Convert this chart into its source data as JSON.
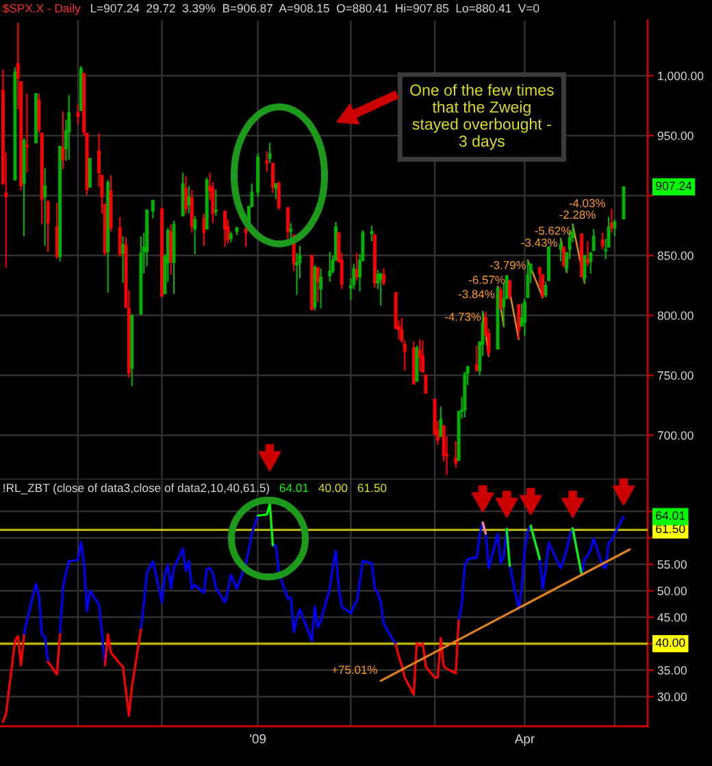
{
  "chart_data": [
    {
      "type": "candlestick",
      "title": "$SPX.X - Daily",
      "subtitle": "L=907.24  29.72  3.39%  B=906.87  A=908.15  O=880.41  Hi=907.85  Lo=880.41  V=0",
      "x": [
        "2008-10-09",
        "2008-10-10",
        "2008-10-13",
        "2008-10-14",
        "2008-10-15",
        "2008-10-16",
        "2008-10-17",
        "2008-10-20",
        "2008-10-21",
        "2008-10-22",
        "2008-10-23",
        "2008-10-24",
        "2008-10-27",
        "2008-10-28",
        "2008-10-29",
        "2008-10-30",
        "2008-10-31",
        "2008-11-03",
        "2008-11-04",
        "2008-11-05",
        "2008-11-06",
        "2008-11-07",
        "2008-11-10",
        "2008-11-11",
        "2008-11-12",
        "2008-11-13",
        "2008-11-14",
        "2008-11-17",
        "2008-11-18",
        "2008-11-19",
        "2008-11-20",
        "2008-11-21",
        "2008-11-24",
        "2008-11-25",
        "2008-11-26",
        "2008-11-28",
        "2008-12-01",
        "2008-12-02",
        "2008-12-03",
        "2008-12-04",
        "2008-12-05",
        "2008-12-08",
        "2008-12-09",
        "2008-12-10",
        "2008-12-11",
        "2008-12-12",
        "2008-12-15",
        "2008-12-16",
        "2008-12-17",
        "2008-12-18",
        "2008-12-19",
        "2008-12-22",
        "2008-12-23",
        "2008-12-24",
        "2008-12-26",
        "2008-12-29",
        "2008-12-30",
        "2008-12-31",
        "2009-01-02",
        "2009-01-05",
        "2009-01-06",
        "2009-01-07",
        "2009-01-08",
        "2009-01-09",
        "2009-01-12",
        "2009-01-13",
        "2009-01-14",
        "2009-01-15",
        "2009-01-16",
        "2009-01-20",
        "2009-01-21",
        "2009-01-22",
        "2009-01-23",
        "2009-01-26",
        "2009-01-27",
        "2009-01-28",
        "2009-01-29",
        "2009-01-30",
        "2009-02-02",
        "2009-02-03",
        "2009-02-04",
        "2009-02-05",
        "2009-02-06",
        "2009-02-09",
        "2009-02-10",
        "2009-02-11",
        "2009-02-12",
        "2009-02-13",
        "2009-02-17",
        "2009-02-18",
        "2009-02-19",
        "2009-02-20",
        "2009-02-23",
        "2009-02-24",
        "2009-02-25",
        "2009-02-26",
        "2009-02-27",
        "2009-03-02",
        "2009-03-03",
        "2009-03-04",
        "2009-03-05",
        "2009-03-06",
        "2009-03-09",
        "2009-03-10",
        "2009-03-11",
        "2009-03-12",
        "2009-03-13",
        "2009-03-16",
        "2009-03-17",
        "2009-03-18",
        "2009-03-19",
        "2009-03-20",
        "2009-03-23",
        "2009-03-24",
        "2009-03-25",
        "2009-03-26",
        "2009-03-27",
        "2009-03-30",
        "2009-03-31",
        "2009-04-01",
        "2009-04-02",
        "2009-04-03",
        "2009-04-06",
        "2009-04-07",
        "2009-04-08",
        "2009-04-09",
        "2009-04-13",
        "2009-04-14",
        "2009-04-15",
        "2009-04-16",
        "2009-04-17",
        "2009-04-20",
        "2009-04-21",
        "2009-04-22",
        "2009-04-23",
        "2009-04-24",
        "2009-04-27",
        "2009-04-28",
        "2009-04-29",
        "2009-04-30",
        "2009-05-01",
        "2009-05-04"
      ],
      "ohlc": [
        [
          988,
          1005,
          909,
          910
        ],
        [
          902,
          936,
          840,
          899
        ],
        [
          913,
          1007,
          913,
          1003
        ],
        [
          1010,
          1044,
          972,
          998
        ],
        [
          995,
          995,
          904,
          908
        ],
        [
          910,
          948,
          866,
          946
        ],
        [
          942,
          985,
          919,
          941
        ],
        [
          944,
          985,
          944,
          985
        ],
        [
          980,
          985,
          952,
          955
        ],
        [
          952,
          952,
          876,
          897
        ],
        [
          899,
          923,
          858,
          908
        ],
        [
          895,
          896,
          853,
          877
        ],
        [
          874,
          894,
          847,
          849
        ],
        [
          849,
          941,
          845,
          941
        ],
        [
          940,
          970,
          922,
          930
        ],
        [
          939,
          963,
          929,
          954
        ],
        [
          953,
          984,
          930,
          969
        ],
        [
          969,
          976,
          959,
          966
        ],
        [
          971,
          1008,
          971,
          1006
        ],
        [
          1002,
          1002,
          950,
          953
        ],
        [
          952,
          952,
          900,
          905
        ],
        [
          907,
          931,
          907,
          931
        ],
        [
          937,
          952,
          907,
          919
        ],
        [
          917,
          917,
          885,
          899
        ],
        [
          893,
          893,
          850,
          852
        ],
        [
          853,
          913,
          819,
          911
        ],
        [
          904,
          917,
          870,
          873
        ],
        [
          873,
          882,
          849,
          851
        ],
        [
          852,
          866,
          827,
          859
        ],
        [
          859,
          865,
          806,
          807
        ],
        [
          806,
          821,
          748,
          752
        ],
        [
          756,
          801,
          741,
          800
        ],
        [
          801,
          866,
          801,
          852
        ],
        [
          853,
          869,
          835,
          857
        ],
        [
          853,
          888,
          841,
          888
        ],
        [
          887,
          896,
          881,
          896
        ],
        [
          889,
          889,
          816,
          816
        ],
        [
          818,
          851,
          818,
          849
        ],
        [
          844,
          873,
          828,
          871
        ],
        [
          870,
          876,
          834,
          845
        ],
        [
          844,
          879,
          818,
          876
        ],
        [
          883,
          919,
          883,
          910
        ],
        [
          906,
          916,
          885,
          889
        ],
        [
          892,
          908,
          885,
          899
        ],
        [
          898,
          905,
          869,
          874
        ],
        [
          872,
          883,
          851,
          880
        ],
        [
          881,
          885,
          858,
          869
        ],
        [
          872,
          915,
          872,
          913
        ],
        [
          908,
          919,
          896,
          904
        ],
        [
          906,
          911,
          877,
          885
        ],
        [
          887,
          905,
          883,
          888
        ],
        [
          887,
          887,
          857,
          872
        ],
        [
          874,
          880,
          860,
          863
        ],
        [
          864,
          870,
          861,
          868
        ],
        [
          870,
          874,
          867,
          873
        ],
        [
          872,
          874,
          857,
          869
        ],
        [
          871,
          891,
          871,
          891
        ],
        [
          891,
          910,
          890,
          903
        ],
        [
          903,
          935,
          899,
          932
        ],
        [
          929,
          937,
          920,
          927
        ],
        [
          931,
          944,
          927,
          935
        ],
        [
          927,
          927,
          902,
          907
        ],
        [
          906,
          910,
          897,
          910
        ],
        [
          910,
          912,
          888,
          890
        ],
        [
          890,
          890,
          864,
          870
        ],
        [
          870,
          877,
          862,
          872
        ],
        [
          867,
          867,
          837,
          843
        ],
        [
          842,
          852,
          817,
          844
        ],
        [
          844,
          858,
          831,
          850
        ],
        [
          850,
          850,
          804,
          805
        ],
        [
          807,
          842,
          804,
          840
        ],
        [
          840,
          840,
          811,
          828
        ],
        [
          822,
          839,
          806,
          832
        ],
        [
          833,
          853,
          828,
          837
        ],
        [
          837,
          850,
          835,
          846
        ],
        [
          846,
          878,
          846,
          874
        ],
        [
          869,
          869,
          844,
          845
        ],
        [
          846,
          852,
          822,
          826
        ],
        [
          823,
          831,
          813,
          825
        ],
        [
          826,
          843,
          822,
          839
        ],
        [
          838,
          852,
          829,
          832
        ],
        [
          832,
          851,
          820,
          846
        ],
        [
          846,
          871,
          845,
          869
        ],
        [
          868,
          875,
          862,
          870
        ],
        [
          867,
          868,
          823,
          827
        ],
        [
          827,
          838,
          822,
          834
        ],
        [
          830,
          835,
          808,
          835
        ],
        [
          834,
          839,
          825,
          827
        ],
        [
          819,
          819,
          789,
          789
        ],
        [
          791,
          796,
          780,
          788
        ],
        [
          788,
          798,
          777,
          779
        ],
        [
          776,
          779,
          754,
          770
        ],
        [
          773,
          778,
          742,
          743
        ],
        [
          745,
          775,
          745,
          773
        ],
        [
          771,
          780,
          753,
          765
        ],
        [
          766,
          779,
          752,
          753
        ],
        [
          750,
          751,
          735,
          735
        ],
        [
          730,
          730,
          700,
          701
        ],
        [
          704,
          712,
          692,
          696
        ],
        [
          699,
          724,
          699,
          713
        ],
        [
          708,
          708,
          678,
          683
        ],
        [
          684,
          699,
          667,
          683
        ],
        [
          681,
          695,
          673,
          677
        ],
        [
          679,
          720,
          679,
          720
        ],
        [
          720,
          732,
          714,
          721
        ],
        [
          721,
          753,
          715,
          751
        ],
        [
          752,
          758,
          742,
          757
        ],
        [
          759,
          775,
          753,
          754
        ],
        [
          754,
          778,
          750,
          778
        ],
        [
          776,
          803,
          766,
          794
        ],
        [
          798,
          803,
          782,
          784
        ],
        [
          785,
          789,
          766,
          769
        ],
        [
          772,
          823,
          772,
          823
        ],
        [
          821,
          824,
          805,
          806
        ],
        [
          807,
          827,
          791,
          814
        ],
        [
          814,
          833,
          814,
          833
        ],
        [
          829,
          829,
          813,
          816
        ],
        [
          809,
          809,
          780,
          788
        ],
        [
          791,
          810,
          791,
          798
        ],
        [
          794,
          814,
          783,
          811
        ],
        [
          815,
          846,
          815,
          834
        ],
        [
          835,
          843,
          827,
          843
        ],
        [
          840,
          840,
          823,
          835
        ],
        [
          834,
          834,
          815,
          816
        ],
        [
          817,
          828,
          815,
          825
        ],
        [
          829,
          857,
          829,
          857
        ],
        [
          855,
          864,
          845,
          859
        ],
        [
          857,
          857,
          840,
          842
        ],
        [
          839,
          853,
          836,
          852
        ],
        [
          855,
          870,
          847,
          865
        ],
        [
          865,
          876,
          861,
          870
        ],
        [
          868,
          868,
          832,
          832
        ],
        [
          831,
          850,
          827,
          850
        ],
        [
          847,
          862,
          841,
          844
        ],
        [
          845,
          853,
          835,
          852
        ],
        [
          854,
          872,
          854,
          866
        ],
        [
          863,
          869,
          855,
          858
        ],
        [
          854,
          864,
          847,
          855
        ],
        [
          857,
          882,
          857,
          874
        ],
        [
          877,
          889,
          869,
          873
        ],
        [
          873,
          880,
          866,
          878
        ],
        [
          880.41,
          907.85,
          880.41,
          907.24
        ]
      ],
      "colors": [
        "#ff0000",
        "#ff0000",
        "#00b400",
        "#ff0000",
        "#ff0000",
        "#00b400",
        "#ff0000",
        "#00b400",
        "#ff0000",
        "#ff0000",
        "#00b400",
        "#ff0000",
        "#ff0000",
        "#00b400",
        "#ff0000",
        "#00b400",
        "#00b400",
        "#ff0000",
        "#00b400",
        "#ff0000",
        "#ff0000",
        "#00b400",
        "#ff0000",
        "#ff0000",
        "#ff0000",
        "#00b400",
        "#ff0000",
        "#ff0000",
        "#00b400",
        "#ff0000",
        "#ff0000",
        "#00b400",
        "#00b400",
        "#00b400",
        "#00b400",
        "#00b400",
        "#ff0000",
        "#00b400",
        "#00b400",
        "#ff0000",
        "#00b400",
        "#00b400",
        "#ff0000",
        "#00b400",
        "#ff0000",
        "#00b400",
        "#ff0000",
        "#00b400",
        "#ff0000",
        "#ff0000",
        "#00b400",
        "#ff0000",
        "#ff0000",
        "#00b400",
        "#00b400",
        "#ff0000",
        "#00b400",
        "#00b400",
        "#00b400",
        "#ff0000",
        "#00b400",
        "#ff0000",
        "#00b400",
        "#ff0000",
        "#ff0000",
        "#00b400",
        "#ff0000",
        "#00b400",
        "#00b400",
        "#ff0000",
        "#00b400",
        "#ff0000",
        "#00b400",
        "#00b400",
        "#00b400",
        "#00b400",
        "#ff0000",
        "#ff0000",
        "#00b400",
        "#00b400",
        "#ff0000",
        "#00b400",
        "#00b400",
        "#00b400",
        "#ff0000",
        "#00b400",
        "#00b400",
        "#ff0000",
        "#ff0000",
        "#ff0000",
        "#ff0000",
        "#ff0000",
        "#ff0000",
        "#00b400",
        "#ff0000",
        "#ff0000",
        "#ff0000",
        "#ff0000",
        "#ff0000",
        "#00b400",
        "#ff0000",
        "#ff0000",
        "#ff0000",
        "#00b400",
        "#00b400",
        "#00b400",
        "#00b400",
        "#ff0000",
        "#00b400",
        "#00b400",
        "#ff0000",
        "#ff0000",
        "#00b400",
        "#ff0000",
        "#00b400",
        "#00b400",
        "#ff0000",
        "#ff0000",
        "#00b400",
        "#00b400",
        "#00b400",
        "#00b400",
        "#ff0000",
        "#ff0000",
        "#00b400",
        "#00b400",
        "#00b400",
        "#ff0000",
        "#00b400",
        "#00b400",
        "#00b400",
        "#ff0000",
        "#00b400",
        "#ff0000",
        "#00b400",
        "#00b400",
        "#ff0000",
        "#00b400",
        "#00b400",
        "#ff0000",
        "#00b400",
        "#00b400"
      ],
      "value_labels": [
        null,
        null,
        null,
        null,
        null,
        null,
        null,
        null,
        null,
        null,
        null,
        null,
        null,
        null,
        null,
        null,
        null,
        null,
        null,
        null,
        null,
        null,
        null,
        null,
        null,
        null,
        null,
        null,
        null,
        null,
        null,
        null,
        null,
        null,
        null,
        null,
        null,
        null,
        null,
        null,
        null,
        null,
        null,
        null,
        null,
        null,
        null,
        null,
        null,
        null,
        null,
        null,
        null,
        null,
        null,
        null,
        null,
        null,
        null,
        null,
        null,
        null,
        null,
        null,
        null,
        null,
        null,
        null,
        null,
        null,
        null,
        null,
        null,
        null,
        null,
        null,
        null,
        null,
        null,
        null,
        null,
        null,
        null,
        null,
        null,
        null,
        null,
        null,
        null,
        null,
        null,
        null,
        null,
        null,
        null,
        null,
        null,
        null,
        null,
        null,
        null,
        null,
        null,
        null,
        null,
        null,
        null,
        null,
        null,
        null,
        null,
        null,
        null,
        null,
        null,
        null,
        null,
        null,
        null,
        null,
        null,
        null,
        null,
        null,
        null,
        null,
        null,
        null,
        null,
        null,
        null,
        null,
        null,
        null,
        null,
        null,
        null,
        null,
        null,
        null,
        null,
        "907.24"
      ],
      "series": [
        {
          "type": "line",
          "x": [
            "2009-03-18",
            "2009-03-20"
          ],
          "values": [
            803,
            766
          ],
          "color": "#e08a1a"
        },
        {
          "type": "line",
          "x": [
            "2009-03-23",
            "2009-03-25"
          ],
          "values": [
            824,
            791
          ],
          "color": "#e08a1a"
        },
        {
          "type": "line",
          "x": [
            "2009-03-26",
            "2009-03-30"
          ],
          "values": [
            833,
            780
          ],
          "color": "#e08a1a"
        },
        {
          "type": "line",
          "x": [
            "2009-04-02",
            "2009-04-07"
          ],
          "values": [
            846,
            815
          ],
          "color": "#e08a1a"
        },
        {
          "type": "line",
          "x": [
            "2009-04-13",
            "2009-04-15"
          ],
          "values": [
            864,
            836
          ],
          "color": "#e08a1a"
        },
        {
          "type": "line",
          "x": [
            "2009-04-17",
            "2009-04-21"
          ],
          "values": [
            876,
            827
          ],
          "color": "#e08a1a"
        }
      ],
      "xlim": [
        "2008-10-08",
        "2009-05-12"
      ],
      "xticks": [
        {
          "value": "2008-11-03",
          "label": null
        },
        {
          "value": "2008-12-01",
          "label": null
        },
        {
          "value": "2009-01-02",
          "label": null
        },
        {
          "value": "2009-02-02",
          "label": null
        },
        {
          "value": "2009-03-02",
          "label": null
        },
        {
          "value": "2009-04-01",
          "label": null
        },
        {
          "value": "2009-05-01",
          "label": null
        }
      ],
      "ylim": [
        663,
        1046
      ],
      "yticks": [
        {
          "value": 700,
          "label": "700.00"
        },
        {
          "value": 750,
          "label": "750.00"
        },
        {
          "value": 800,
          "label": "800.00"
        },
        {
          "value": 850,
          "label": "850.00"
        },
        {
          "value": 900,
          "label": null
        },
        {
          "value": 950,
          "label": "950.00"
        },
        {
          "value": 1000,
          "label": "1,000.00"
        }
      ],
      "grid": true,
      "tick_labels": "y",
      "annotations": [
        "One of the few times\nthat the Zweig\nstayed overbought -\n3 days",
        "-4.73%",
        "-3.84%",
        "-6.57%",
        "-3.79%",
        "-3.43%",
        "-5.62%",
        "-2.28%",
        "-4.03%"
      ]
    },
    {
      "type": "line",
      "x": [
        "2008-10-09",
        "2008-10-10",
        "2008-10-13",
        "2008-10-14",
        "2008-10-15",
        "2008-10-16",
        "2008-10-17",
        "2008-10-20",
        "2008-10-21",
        "2008-10-22",
        "2008-10-23",
        "2008-10-24",
        "2008-10-27",
        "2008-10-28",
        "2008-10-29",
        "2008-10-30",
        "2008-10-31",
        "2008-11-03",
        "2008-11-04",
        "2008-11-05",
        "2008-11-06",
        "2008-11-07",
        "2008-11-10",
        "2008-11-11",
        "2008-11-12",
        "2008-11-13",
        "2008-11-14",
        "2008-11-17",
        "2008-11-18",
        "2008-11-19",
        "2008-11-20",
        "2008-11-21",
        "2008-11-24",
        "2008-11-25",
        "2008-11-26",
        "2008-11-28",
        "2008-12-01",
        "2008-12-02",
        "2008-12-03",
        "2008-12-04",
        "2008-12-05",
        "2008-12-08",
        "2008-12-09",
        "2008-12-10",
        "2008-12-11",
        "2008-12-12",
        "2008-12-15",
        "2008-12-16",
        "2008-12-17",
        "2008-12-18",
        "2008-12-19",
        "2008-12-22",
        "2008-12-23",
        "2008-12-24",
        "2008-12-26",
        "2008-12-29",
        "2008-12-30",
        "2008-12-31",
        "2009-01-02",
        "2009-01-05",
        "2009-01-06",
        "2009-01-07",
        "2009-01-08",
        "2009-01-09",
        "2009-01-12",
        "2009-01-13",
        "2009-01-14",
        "2009-01-15",
        "2009-01-16",
        "2009-01-20",
        "2009-01-21",
        "2009-01-22",
        "2009-01-23",
        "2009-01-26",
        "2009-01-27",
        "2009-01-28",
        "2009-01-29",
        "2009-01-30",
        "2009-02-02",
        "2009-02-03",
        "2009-02-04",
        "2009-02-05",
        "2009-02-06",
        "2009-02-09",
        "2009-02-10",
        "2009-02-11",
        "2009-02-12",
        "2009-02-13",
        "2009-02-17",
        "2009-02-18",
        "2009-02-19",
        "2009-02-20",
        "2009-02-23",
        "2009-02-24",
        "2009-02-25",
        "2009-02-26",
        "2009-02-27",
        "2009-03-02",
        "2009-03-03",
        "2009-03-04",
        "2009-03-05",
        "2009-03-06",
        "2009-03-09",
        "2009-03-10",
        "2009-03-11",
        "2009-03-12",
        "2009-03-13",
        "2009-03-16",
        "2009-03-17",
        "2009-03-18",
        "2009-03-19",
        "2009-03-20",
        "2009-03-23",
        "2009-03-24",
        "2009-03-25",
        "2009-03-26",
        "2009-03-27",
        "2009-03-30",
        "2009-03-31",
        "2009-04-01",
        "2009-04-02",
        "2009-04-03",
        "2009-04-06",
        "2009-04-07",
        "2009-04-08",
        "2009-04-09",
        "2009-04-13",
        "2009-04-14",
        "2009-04-15",
        "2009-04-16",
        "2009-04-17",
        "2009-04-20",
        "2009-04-21",
        "2009-04-22",
        "2009-04-23",
        "2009-04-24",
        "2009-04-27",
        "2009-04-28",
        "2009-04-29",
        "2009-04-30",
        "2009-05-01",
        "2009-05-04"
      ],
      "series": [
        {
          "name": "!RL_ZBT (close of data3,close of data2,10,40,61.5)",
          "color": "#0000ff",
          "values": [
            null,
            null,
            null,
            null,
            null,
            41.6,
            44.4,
            51.3,
            48.9,
            41.8,
            41.2,
            36.6,
            null,
            41.8,
            50.4,
            53.4,
            55.6,
            55.8,
            59.2,
            55.2,
            46.1,
            50.0,
            47.4,
            42.2,
            35.9,
            null,
            null,
            null,
            null,
            null,
            null,
            null,
            42.7,
            47.8,
            53.4,
            55.6,
            47.8,
            53.0,
            54.9,
            50.4,
            54.3,
            58.0,
            53.7,
            55.6,
            50.4,
            51.1,
            49.6,
            54.1,
            54.3,
            53.2,
            50.6,
            47.8,
            50.0,
            53.0,
            50.4,
            55.2,
            57.8,
            60.8,
            64.2,
            null,
            null,
            58.6,
            58.6,
            53.4,
            48.5,
            48.7,
            42.2,
            44.8,
            46.5,
            40.5,
            47.0,
            43.1,
            44.4,
            50.4,
            54.7,
            57.5,
            50.4,
            47.0,
            45.7,
            47.1,
            48.0,
            51.6,
            55.6,
            55.2,
            50.4,
            49.6,
            47.8,
            43.7,
            39.9,
            null,
            null,
            null,
            null,
            null,
            null,
            null,
            null,
            null,
            null,
            null,
            null,
            null,
            null,
            44.4,
            47.4,
            54.7,
            56.0,
            56.3,
            60.8,
            62.9,
            60.8,
            54.3,
            60.8,
            55.2,
            56.5,
            61.7,
            54.7,
            46.5,
            50.4,
            57.8,
            61.2,
            62.3,
            56.0,
            50.4,
            54.1,
            59.1,
            54.3,
            55.8,
            57.8,
            60.4,
            61.8,
            53.0,
            56.0,
            56.6,
            57.8,
            59.9,
            54.7,
            54.3,
            59.1,
            59.5,
            60.8,
            64.0
          ]
        },
        {
          "color": "#ff0000",
          "values": [
            25.2,
            26.7,
            40.5,
            41.4,
            35.9,
            41.6,
            null,
            null,
            null,
            null,
            null,
            36.6,
            34.2,
            41.8,
            null,
            null,
            null,
            null,
            null,
            null,
            null,
            null,
            null,
            null,
            35.9,
            41.8,
            38.3,
            36.2,
            35.7,
            31.0,
            26.4,
            31.9,
            42.7,
            null,
            null,
            null,
            null,
            null,
            null,
            null,
            null,
            null,
            null,
            null,
            null,
            null,
            null,
            null,
            null,
            null,
            null,
            null,
            null,
            null,
            null,
            null,
            null,
            null,
            null,
            null,
            null,
            null,
            null,
            null,
            null,
            null,
            null,
            null,
            null,
            null,
            null,
            null,
            null,
            null,
            null,
            null,
            null,
            null,
            null,
            null,
            null,
            null,
            null,
            null,
            null,
            null,
            null,
            null,
            39.9,
            37.6,
            35.9,
            33.6,
            30.4,
            40.1,
            39.6,
            40.1,
            35.7,
            33.6,
            33.6,
            41.1,
            35.7,
            35.3,
            34.4,
            44.4,
            null,
            null,
            null,
            null,
            null,
            null,
            null,
            null,
            null,
            null,
            null,
            null,
            null,
            null,
            null,
            null,
            null,
            null,
            null,
            null,
            null,
            null,
            null,
            null,
            null,
            null,
            null,
            null,
            null,
            null,
            null,
            null,
            null,
            null,
            null,
            null,
            null,
            null
          ]
        },
        {
          "color": "#00ff00",
          "values": [
            null,
            null,
            null,
            null,
            null,
            null,
            null,
            null,
            null,
            null,
            null,
            null,
            null,
            null,
            null,
            null,
            null,
            null,
            null,
            null,
            null,
            null,
            null,
            null,
            null,
            null,
            null,
            null,
            null,
            null,
            null,
            null,
            null,
            null,
            null,
            null,
            null,
            null,
            null,
            null,
            null,
            null,
            null,
            null,
            null,
            null,
            null,
            null,
            null,
            null,
            null,
            null,
            null,
            null,
            null,
            null,
            null,
            null,
            64.2,
            64.4,
            66.4,
            58.6,
            null,
            null,
            null,
            null,
            null,
            null,
            null,
            null,
            null,
            null,
            null,
            null,
            null,
            null,
            null,
            null,
            null,
            null,
            null,
            null,
            null,
            null,
            null,
            null,
            null,
            null,
            null,
            null,
            null,
            null,
            null,
            null,
            null,
            null,
            null,
            null,
            null,
            null,
            null,
            null,
            null,
            null,
            null,
            null,
            null,
            null,
            null,
            null,
            null,
            null,
            null,
            null,
            null,
            61.7,
            54.7,
            null,
            null,
            null,
            null,
            62.3,
            56.0,
            null,
            null,
            null,
            null,
            null,
            null,
            null,
            61.8,
            53.0,
            null,
            null,
            null,
            null,
            null,
            null,
            null,
            null,
            null,
            null
          ]
        },
        {
          "color": "#ff8a8a",
          "values": [
            null,
            null,
            null,
            null,
            null,
            null,
            null,
            null,
            null,
            null,
            null,
            null,
            null,
            null,
            null,
            null,
            null,
            null,
            null,
            null,
            null,
            null,
            null,
            null,
            null,
            null,
            null,
            null,
            null,
            null,
            null,
            null,
            null,
            null,
            null,
            null,
            null,
            null,
            null,
            null,
            null,
            null,
            null,
            null,
            null,
            null,
            null,
            null,
            null,
            null,
            null,
            null,
            null,
            null,
            null,
            null,
            null,
            null,
            null,
            null,
            null,
            null,
            null,
            null,
            null,
            null,
            null,
            null,
            null,
            null,
            null,
            null,
            null,
            null,
            null,
            null,
            null,
            null,
            null,
            null,
            null,
            null,
            null,
            null,
            null,
            null,
            null,
            null,
            null,
            null,
            null,
            null,
            null,
            null,
            null,
            null,
            null,
            null,
            null,
            null,
            null,
            null,
            null,
            null,
            null,
            null,
            null,
            null,
            null,
            62.9,
            60.8,
            null,
            null,
            null,
            null,
            null,
            null,
            null,
            null,
            null,
            null,
            null,
            null,
            null,
            null,
            null,
            null,
            null,
            null,
            null,
            null,
            null,
            null,
            null,
            null,
            null,
            null,
            null,
            null,
            null,
            null,
            null
          ]
        },
        {
          "type": "line",
          "x": [
            "2009-02-12",
            "2009-05-06"
          ],
          "values": [
            33.0,
            57.8
          ],
          "color": "#e08020"
        }
      ],
      "ref_lines": [
        {
          "axis": "y",
          "value": 40,
          "label": "40.00",
          "color": "#b4b400"
        },
        {
          "axis": "y",
          "value": 61.5,
          "label": "61.50",
          "color": "#b4b400"
        }
      ],
      "annotations": [
        "+75.01%",
        "64.01"
      ],
      "xlim": [
        "2008-10-08",
        "2009-05-12"
      ],
      "xticks": [
        {
          "value": "2008-11-03",
          "label": null
        },
        {
          "value": "2008-12-01",
          "label": null
        },
        {
          "value": "2009-01-02",
          "label": "'09"
        },
        {
          "value": "2009-02-02",
          "label": null
        },
        {
          "value": "2009-03-02",
          "label": null
        },
        {
          "value": "2009-04-01",
          "label": "Apr"
        },
        {
          "value": "2009-05-01",
          "label": null
        }
      ],
      "ylim": [
        24.4,
        71.0
      ],
      "yticks": [
        {
          "value": 30,
          "label": "30.00"
        },
        {
          "value": 35,
          "label": "35.00"
        },
        {
          "value": 40,
          "label": null
        },
        {
          "value": 45,
          "label": "45.00"
        },
        {
          "value": 50,
          "label": "50.00"
        },
        {
          "value": 55,
          "label": "55.00"
        },
        {
          "value": 60,
          "label": null
        },
        {
          "value": 65,
          "label": null
        }
      ],
      "grid": true
    }
  ]
}
